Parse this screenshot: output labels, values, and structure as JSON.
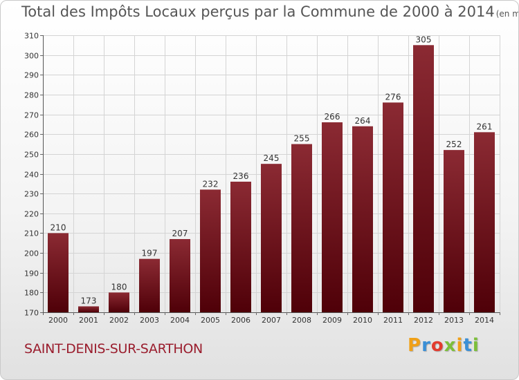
{
  "header": {
    "title": "Total des Impôts Locaux perçus par la Commune de 2000 à 2014",
    "unit": "(en milliers d'€)"
  },
  "footer": {
    "commune": "SAINT-DENIS-SUR-SARTHON",
    "logo_letters": [
      "P",
      "r",
      "o",
      "x",
      "i",
      "t",
      "i"
    ]
  },
  "colors": {
    "bar_top": "#8b2a33",
    "bar_bottom": "#4f0008",
    "commune_text": "#9a1d2d",
    "grid": "#d4d4d4"
  },
  "chart_data": {
    "type": "bar",
    "title": "Total des Impôts Locaux perçus par la Commune de 2000 à 2014",
    "xlabel": "",
    "ylabel": "en milliers d'€",
    "categories": [
      "2000",
      "2001",
      "2002",
      "2003",
      "2004",
      "2005",
      "2006",
      "2007",
      "2008",
      "2009",
      "2010",
      "2011",
      "2012",
      "2013",
      "2014"
    ],
    "values": [
      210,
      173,
      180,
      197,
      207,
      232,
      236,
      245,
      255,
      266,
      264,
      276,
      305,
      252,
      261
    ],
    "ylim": [
      170,
      310
    ],
    "yticks": [
      170,
      180,
      190,
      200,
      210,
      220,
      230,
      240,
      250,
      260,
      270,
      280,
      290,
      300,
      310
    ],
    "grid": true
  }
}
